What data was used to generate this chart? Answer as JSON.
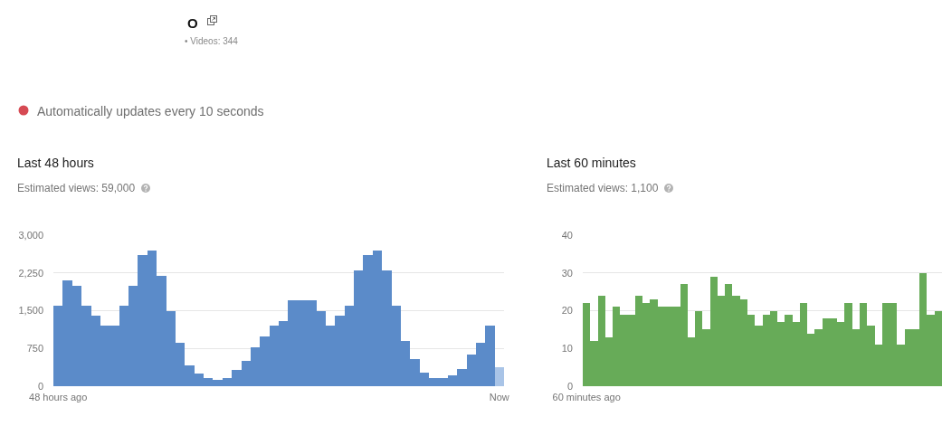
{
  "chart_data": [
    {
      "type": "other",
      "title": "O",
      "subtitle": "• Videos: 344",
      "annotations": [
        "Automatically updates every 10 seconds"
      ]
    },
    {
      "type": "bar",
      "title": "Last 48 hours",
      "subtitle": "Estimated views: 59,000",
      "categories": [
        "48 hours ago",
        null,
        null,
        null,
        null,
        null,
        null,
        null,
        null,
        null,
        null,
        null,
        null,
        null,
        null,
        null,
        null,
        null,
        null,
        null,
        null,
        null,
        null,
        null,
        null,
        null,
        null,
        null,
        null,
        null,
        null,
        null,
        null,
        null,
        null,
        null,
        null,
        null,
        null,
        null,
        null,
        null,
        null,
        null,
        null,
        null,
        null,
        "Now"
      ],
      "values": [
        1600,
        2100,
        2000,
        1600,
        1400,
        1200,
        1200,
        1600,
        2000,
        2600,
        2700,
        2200,
        1500,
        870,
        420,
        260,
        160,
        130,
        160,
        330,
        510,
        780,
        990,
        1200,
        1300,
        1700,
        1700,
        1700,
        1500,
        1200,
        1400,
        1600,
        2300,
        2600,
        2700,
        2300,
        1600,
        900,
        540,
        270,
        170,
        160,
        220,
        340,
        630,
        870,
        1200,
        380
      ],
      "colors": [
        "#5b8bc9",
        "#5b8bc9",
        "#5b8bc9",
        "#5b8bc9",
        "#5b8bc9",
        "#5b8bc9",
        "#5b8bc9",
        "#5b8bc9",
        "#5b8bc9",
        "#5b8bc9",
        "#5b8bc9",
        "#5b8bc9",
        "#5b8bc9",
        "#5b8bc9",
        "#5b8bc9",
        "#5b8bc9",
        "#5b8bc9",
        "#5b8bc9",
        "#5b8bc9",
        "#5b8bc9",
        "#5b8bc9",
        "#5b8bc9",
        "#5b8bc9",
        "#5b8bc9",
        "#5b8bc9",
        "#5b8bc9",
        "#5b8bc9",
        "#5b8bc9",
        "#5b8bc9",
        "#5b8bc9",
        "#5b8bc9",
        "#5b8bc9",
        "#5b8bc9",
        "#5b8bc9",
        "#5b8bc9",
        "#5b8bc9",
        "#5b8bc9",
        "#5b8bc9",
        "#5b8bc9",
        "#5b8bc9",
        "#5b8bc9",
        "#5b8bc9",
        "#5b8bc9",
        "#5b8bc9",
        "#5b8bc9",
        "#5b8bc9",
        "#5b8bc9",
        "#a9c4e7"
      ],
      "ylim": [
        0,
        3000
      ],
      "yticks": [
        0,
        750,
        {
          "value": 1500,
          "label": "1,500"
        },
        {
          "value": 2250,
          "label": "2,250"
        },
        {
          "value": 3000,
          "label": "3,000"
        }
      ],
      "grid": "y"
    },
    {
      "type": "bar",
      "title": "Last 60 minutes",
      "subtitle": "Estimated views: 1,100",
      "categories": [
        "60 minutes ago",
        null,
        null,
        null,
        null,
        null,
        null,
        null,
        null,
        null,
        null,
        null,
        null,
        null,
        null,
        null,
        null,
        null,
        null,
        null,
        null,
        null,
        null,
        null,
        null,
        null,
        null,
        null,
        null,
        null,
        null,
        null,
        null,
        null,
        null,
        null,
        null,
        null,
        null,
        null,
        null,
        null,
        null,
        null,
        null,
        null,
        null,
        null
      ],
      "values": [
        22,
        12,
        24,
        13,
        21,
        19,
        19,
        24,
        22,
        23,
        21,
        21,
        21,
        27,
        13,
        20,
        15,
        29,
        24,
        27,
        24,
        23,
        19,
        16,
        19,
        20,
        17,
        19,
        17,
        22,
        14,
        15,
        18,
        18,
        17,
        22,
        15,
        22,
        16,
        11,
        22,
        22,
        11,
        15,
        15,
        30,
        19,
        20
      ],
      "color": "#67ab58",
      "ylim": [
        0,
        40
      ],
      "yticks": [
        0,
        10,
        20,
        30,
        40
      ],
      "grid": "y"
    }
  ]
}
